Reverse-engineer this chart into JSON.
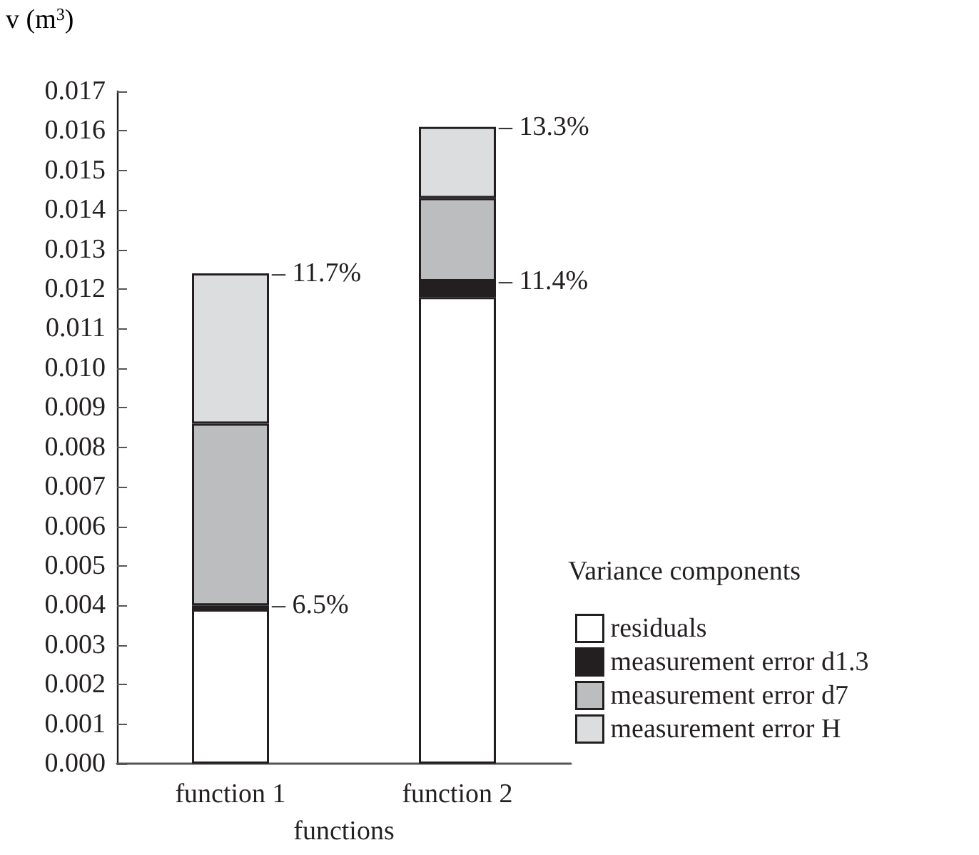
{
  "chart_data": {
    "type": "bar",
    "stacked": true,
    "ylabel": "v (m$^{3}$)",
    "xlabel": "functions",
    "legend_title": "Variance components",
    "legend": "bottom right",
    "categories": [
      "function 1",
      "function 2"
    ],
    "series": [
      {
        "name": "residuals",
        "color": "#ffffff",
        "values": [
          0.0039,
          0.0118
        ]
      },
      {
        "name": "measurement error d1.3",
        "color": "#231f20",
        "values": [
          0.0001,
          0.0004
        ]
      },
      {
        "name": "measurement error d7",
        "color": "#bcbdbf",
        "values": [
          0.0046,
          0.0021
        ]
      },
      {
        "name": "measurement error H",
        "color": "#dcdddf",
        "values": [
          0.0038,
          0.0018
        ]
      }
    ],
    "ylim": [
      0,
      0.017
    ],
    "yticks": [
      {
        "value": 0,
        "label": "0.000"
      },
      {
        "value": 0.001,
        "label": "0.001"
      },
      {
        "value": 0.002,
        "label": "0.002"
      },
      {
        "value": 0.003,
        "label": "0.003"
      },
      {
        "value": 0.004,
        "label": "0.004"
      },
      {
        "value": 0.005,
        "label": "0.005"
      },
      {
        "value": 0.006,
        "label": "0.006"
      },
      {
        "value": 0.007,
        "label": "0.007"
      },
      {
        "value": 0.008,
        "label": "0.008"
      },
      {
        "value": 0.009,
        "label": "0.009"
      },
      {
        "value": 0.01,
        "label": "0.010"
      },
      {
        "value": 0.011,
        "label": "0.011"
      },
      {
        "value": 0.012,
        "label": "0.012"
      },
      {
        "value": 0.013,
        "label": "0.013"
      },
      {
        "value": 0.014,
        "label": "0.014"
      },
      {
        "value": 0.015,
        "label": "0.015"
      },
      {
        "value": 0.016,
        "label": "0.016"
      },
      {
        "value": 0.017,
        "label": "0.017"
      }
    ],
    "annotations": [
      {
        "text": "– 11.7%",
        "x": "function 1",
        "y": 0.0124
      },
      {
        "text": "– 6.5%",
        "x": "function 1",
        "y": 0.004
      },
      {
        "text": "– 13.3%",
        "x": "function 2",
        "y": 0.0161
      },
      {
        "text": "– 11.4%",
        "x": "function 2",
        "y": 0.0122
      }
    ],
    "grid": false
  }
}
